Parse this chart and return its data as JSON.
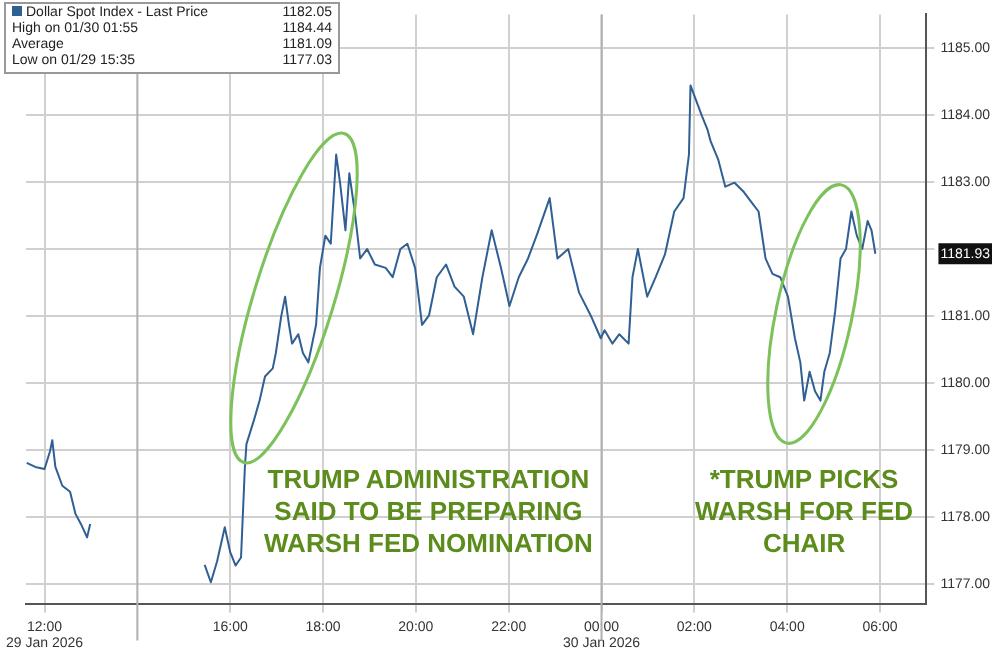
{
  "chart_data": {
    "type": "line",
    "x": [
      "2026-01-29T11:37",
      "2026-01-29T11:48",
      "2026-01-29T12:00",
      "2026-01-29T12:07",
      "2026-01-29T12:10",
      "2026-01-29T12:14",
      "2026-01-29T12:23",
      "2026-01-29T12:33",
      "2026-01-29T12:40",
      "2026-01-29T12:47",
      "2026-01-29T12:55",
      "2026-01-29T12:59",
      "2026-01-29T14:00",
      "2026-01-29T15:27",
      "2026-01-29T15:35",
      "2026-01-29T15:43",
      "2026-01-29T15:53",
      "2026-01-29T16:00",
      "2026-01-29T16:07",
      "2026-01-29T16:14",
      "2026-01-29T16:19",
      "2026-01-29T16:21",
      "2026-01-29T16:31",
      "2026-01-29T16:38",
      "2026-01-29T16:45",
      "2026-01-29T16:55",
      "2026-01-29T16:59",
      "2026-01-29T17:06",
      "2026-01-29T17:11",
      "2026-01-29T17:16",
      "2026-01-29T17:20",
      "2026-01-29T17:28",
      "2026-01-29T17:34",
      "2026-01-29T17:41",
      "2026-01-29T17:51",
      "2026-01-29T17:56",
      "2026-01-29T18:03",
      "2026-01-29T18:10",
      "2026-01-29T18:17",
      "2026-01-29T18:22",
      "2026-01-29T18:29",
      "2026-01-29T18:34",
      "2026-01-29T18:41",
      "2026-01-29T18:48",
      "2026-01-29T18:57",
      "2026-01-29T19:07",
      "2026-01-29T19:21",
      "2026-01-29T19:30",
      "2026-01-29T19:40",
      "2026-01-29T19:49",
      "2026-01-29T19:59",
      "2026-01-29T20:08",
      "2026-01-29T20:17",
      "2026-01-29T20:27",
      "2026-01-29T20:39",
      "2026-01-29T20:50",
      "2026-01-29T21:02",
      "2026-01-29T21:14",
      "2026-01-29T21:26",
      "2026-01-29T21:38",
      "2026-01-29T21:50",
      "2026-01-29T22:01",
      "2026-01-29T22:13",
      "2026-01-29T22:25",
      "2026-01-29T22:37",
      "2026-01-29T22:53",
      "2026-01-29T23:03",
      "2026-01-29T23:17",
      "2026-01-29T23:31",
      "2026-01-29T23:46",
      "2026-01-29T23:59",
      "2026-01-30T00:04",
      "2026-01-30T00:14",
      "2026-01-30T00:23",
      "2026-01-30T00:35",
      "2026-01-30T00:40",
      "2026-01-30T00:47",
      "2026-01-30T00:59",
      "2026-01-30T01:10",
      "2026-01-30T01:22",
      "2026-01-30T01:34",
      "2026-01-30T01:46",
      "2026-01-30T01:53",
      "2026-01-30T01:55",
      "2026-01-30T02:10",
      "2026-01-30T02:17",
      "2026-01-30T02:21",
      "2026-01-30T02:31",
      "2026-01-30T02:40",
      "2026-01-30T02:52",
      "2026-01-30T03:04",
      "2026-01-30T03:13",
      "2026-01-30T03:23",
      "2026-01-30T03:32",
      "2026-01-30T03:41",
      "2026-01-30T03:51",
      "2026-01-30T04:01",
      "2026-01-30T04:10",
      "2026-01-30T04:17",
      "2026-01-30T04:22",
      "2026-01-30T04:29",
      "2026-01-30T04:36",
      "2026-01-30T04:43",
      "2026-01-30T04:48",
      "2026-01-30T04:55",
      "2026-01-30T05:02",
      "2026-01-30T05:09",
      "2026-01-30T05:16",
      "2026-01-30T05:23",
      "2026-01-30T05:30",
      "2026-01-30T05:37",
      "2026-01-30T05:44",
      "2026-01-30T05:49",
      "2026-01-30T05:54"
    ],
    "series": [
      {
        "name": "Dollar Spot Index - Last Price",
        "color": "#2f5f93",
        "values": [
          1178.81,
          1178.75,
          1178.72,
          1178.98,
          1179.15,
          1178.75,
          1178.47,
          1178.38,
          1178.05,
          1177.9,
          1177.7,
          1177.9,
          null,
          1177.29,
          1177.03,
          1177.34,
          1177.85,
          1177.48,
          1177.28,
          1177.4,
          1178.75,
          1179.09,
          1179.46,
          1179.74,
          1180.1,
          1180.22,
          1180.45,
          1181.0,
          1181.29,
          1180.87,
          1180.59,
          1180.73,
          1180.45,
          1180.31,
          1180.87,
          1181.72,
          1182.2,
          1182.08,
          1183.41,
          1182.99,
          1182.28,
          1183.13,
          1182.56,
          1181.86,
          1182.0,
          1181.77,
          1181.72,
          1181.58,
          1182.0,
          1182.08,
          1181.72,
          1180.87,
          1181.01,
          1181.58,
          1181.77,
          1181.44,
          1181.29,
          1180.73,
          1181.58,
          1182.28,
          1181.72,
          1181.15,
          1181.58,
          1181.86,
          1182.23,
          1182.76,
          1181.86,
          1182.0,
          1181.35,
          1181.01,
          1180.67,
          1180.79,
          1180.59,
          1180.73,
          1180.59,
          1181.58,
          1182.0,
          1181.29,
          1181.58,
          1181.92,
          1182.56,
          1182.76,
          1183.41,
          1184.44,
          1183.98,
          1183.78,
          1183.61,
          1183.33,
          1182.93,
          1182.99,
          1182.85,
          1182.71,
          1182.56,
          1181.86,
          1181.63,
          1181.58,
          1181.29,
          1180.67,
          1180.31,
          1179.74,
          1180.17,
          1179.88,
          1179.74,
          1180.17,
          1180.45,
          1181.07,
          1181.86,
          1182.0,
          1182.56,
          1182.2,
          1182.0,
          1182.42,
          1182.28,
          1181.93
        ]
      }
    ],
    "xlim": [
      "2026-01-29T11:36",
      "2026-01-30T07:00"
    ],
    "xticks": [
      {
        "value": "2026-01-29T12:00",
        "label": "12:00\n29 Jan 2026"
      },
      {
        "value": "2026-01-29T16:00",
        "label": "16:00"
      },
      {
        "value": "2026-01-29T18:00",
        "label": "18:00"
      },
      {
        "value": "2026-01-29T20:00",
        "label": "20:00"
      },
      {
        "value": "2026-01-29T22:00",
        "label": "22:00"
      },
      {
        "value": "2026-01-30T00:00",
        "label": "00:00\n30 Jan 2026"
      },
      {
        "value": "2026-01-30T02:00",
        "label": "02:00"
      },
      {
        "value": "2026-01-30T04:00",
        "label": "04:00"
      },
      {
        "value": "2026-01-30T06:00",
        "label": "06:00"
      }
    ],
    "ylim": [
      1176.7,
      1185.5
    ],
    "yticks": [
      {
        "value": 1177,
        "label": "1177.00"
      },
      {
        "value": 1178,
        "label": "1178.00"
      },
      {
        "value": 1179,
        "label": "1179.00"
      },
      {
        "value": 1180,
        "label": "1180.00"
      },
      {
        "value": 1181,
        "label": "1181.00"
      },
      {
        "value": 1181.93,
        "label": "1181.93"
      },
      {
        "value": 1182,
        "label": null
      },
      {
        "value": 1183,
        "label": "1183.00"
      },
      {
        "value": 1184,
        "label": "1184.00"
      },
      {
        "value": 1185,
        "label": "1185.00"
      }
    ],
    "ref_lines": [
      {
        "axis": "x",
        "value": "2026-01-29T14:00",
        "color": "#b0b0b0"
      },
      {
        "axis": "x",
        "value": "2026-01-30T00:00",
        "color": "#b0b0b0"
      }
    ],
    "annotations": [
      "1182.05",
      "High on 01/30 01:55 1184.44",
      "Average 1181.09",
      "Low on 01/29 15:35 1177.03",
      "TRUMP ADMINISTRATION\nSAID TO BE PREPARING\nWARSH FED NOMINATION",
      "*TRUMP PICKS\nWARSH FOR FED\nCHAIR"
    ],
    "grid": true,
    "legend": "top left",
    "marker": "none",
    "line_style": "solid"
  }
}
